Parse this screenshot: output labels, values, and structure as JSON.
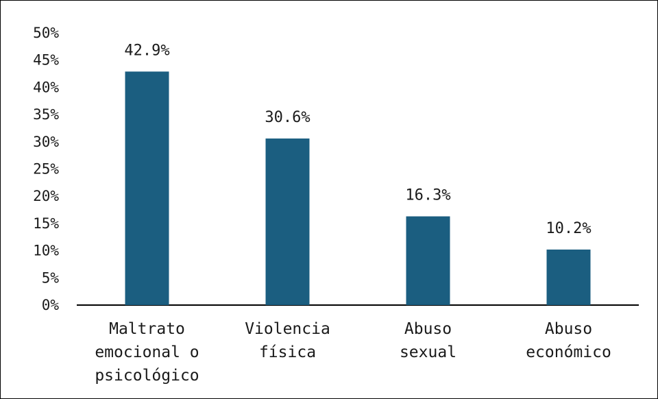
{
  "chart_data": {
    "type": "bar",
    "categories": [
      [
        "Maltrato",
        "emocional o",
        "psicológico"
      ],
      [
        "Violencia",
        "física"
      ],
      [
        "Abuso",
        "sexual"
      ],
      [
        "Abuso",
        "económico"
      ]
    ],
    "values": [
      42.9,
      30.6,
      16.3,
      10.2
    ],
    "data_labels": [
      "42.9%",
      "30.6%",
      "16.3%",
      "10.2%"
    ],
    "y_ticks": [
      "0%",
      "5%",
      "10%",
      "15%",
      "20%",
      "25%",
      "30%",
      "35%",
      "40%",
      "45%",
      "50%"
    ],
    "ylim": [
      0,
      50
    ],
    "grid": false,
    "bar_color": "#1b5e80",
    "axis_color": "#000000"
  }
}
